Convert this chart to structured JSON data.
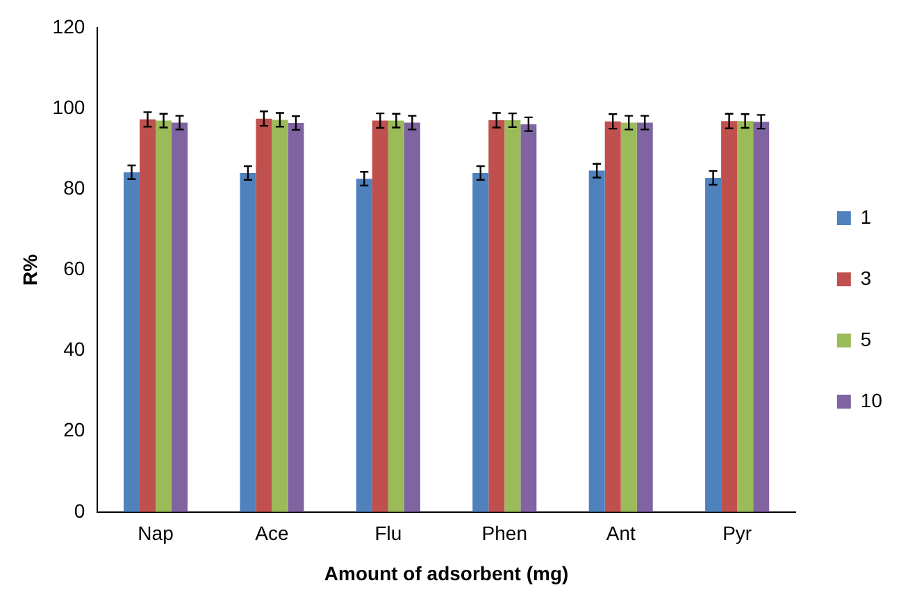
{
  "chart_data": {
    "type": "bar",
    "xlabel": "Amount of adsorbent (mg)",
    "ylabel": "R%",
    "categories": [
      "Nap",
      "Ace",
      "Flu",
      "Phen",
      "Ant",
      "Pyr"
    ],
    "series": [
      {
        "name": "1",
        "color": "#4f81bd",
        "values": [
          84.2,
          84,
          82.6,
          84,
          84.6,
          82.8
        ],
        "errors": [
          1.7,
          1.7,
          1.7,
          1.7,
          1.7,
          1.7
        ]
      },
      {
        "name": "3",
        "color": "#c0504d",
        "values": [
          97.3,
          97.5,
          97,
          97.1,
          96.8,
          96.9
        ],
        "errors": [
          1.8,
          1.8,
          1.8,
          1.8,
          1.8,
          1.8
        ]
      },
      {
        "name": "5",
        "color": "#9bbb59",
        "values": [
          97,
          97.2,
          97,
          97.1,
          96.5,
          96.9
        ],
        "errors": [
          1.7,
          1.7,
          1.7,
          1.7,
          1.7,
          1.7
        ]
      },
      {
        "name": "10",
        "color": "#8064a2",
        "values": [
          96.5,
          96.4,
          96.5,
          96.1,
          96.5,
          96.7
        ],
        "errors": [
          1.7,
          1.7,
          1.7,
          1.7,
          1.7,
          1.7
        ]
      }
    ],
    "ylim": [
      0,
      120
    ],
    "yticks": [
      0,
      20,
      40,
      60,
      80,
      100,
      120
    ],
    "grid": false,
    "legend": "right"
  }
}
